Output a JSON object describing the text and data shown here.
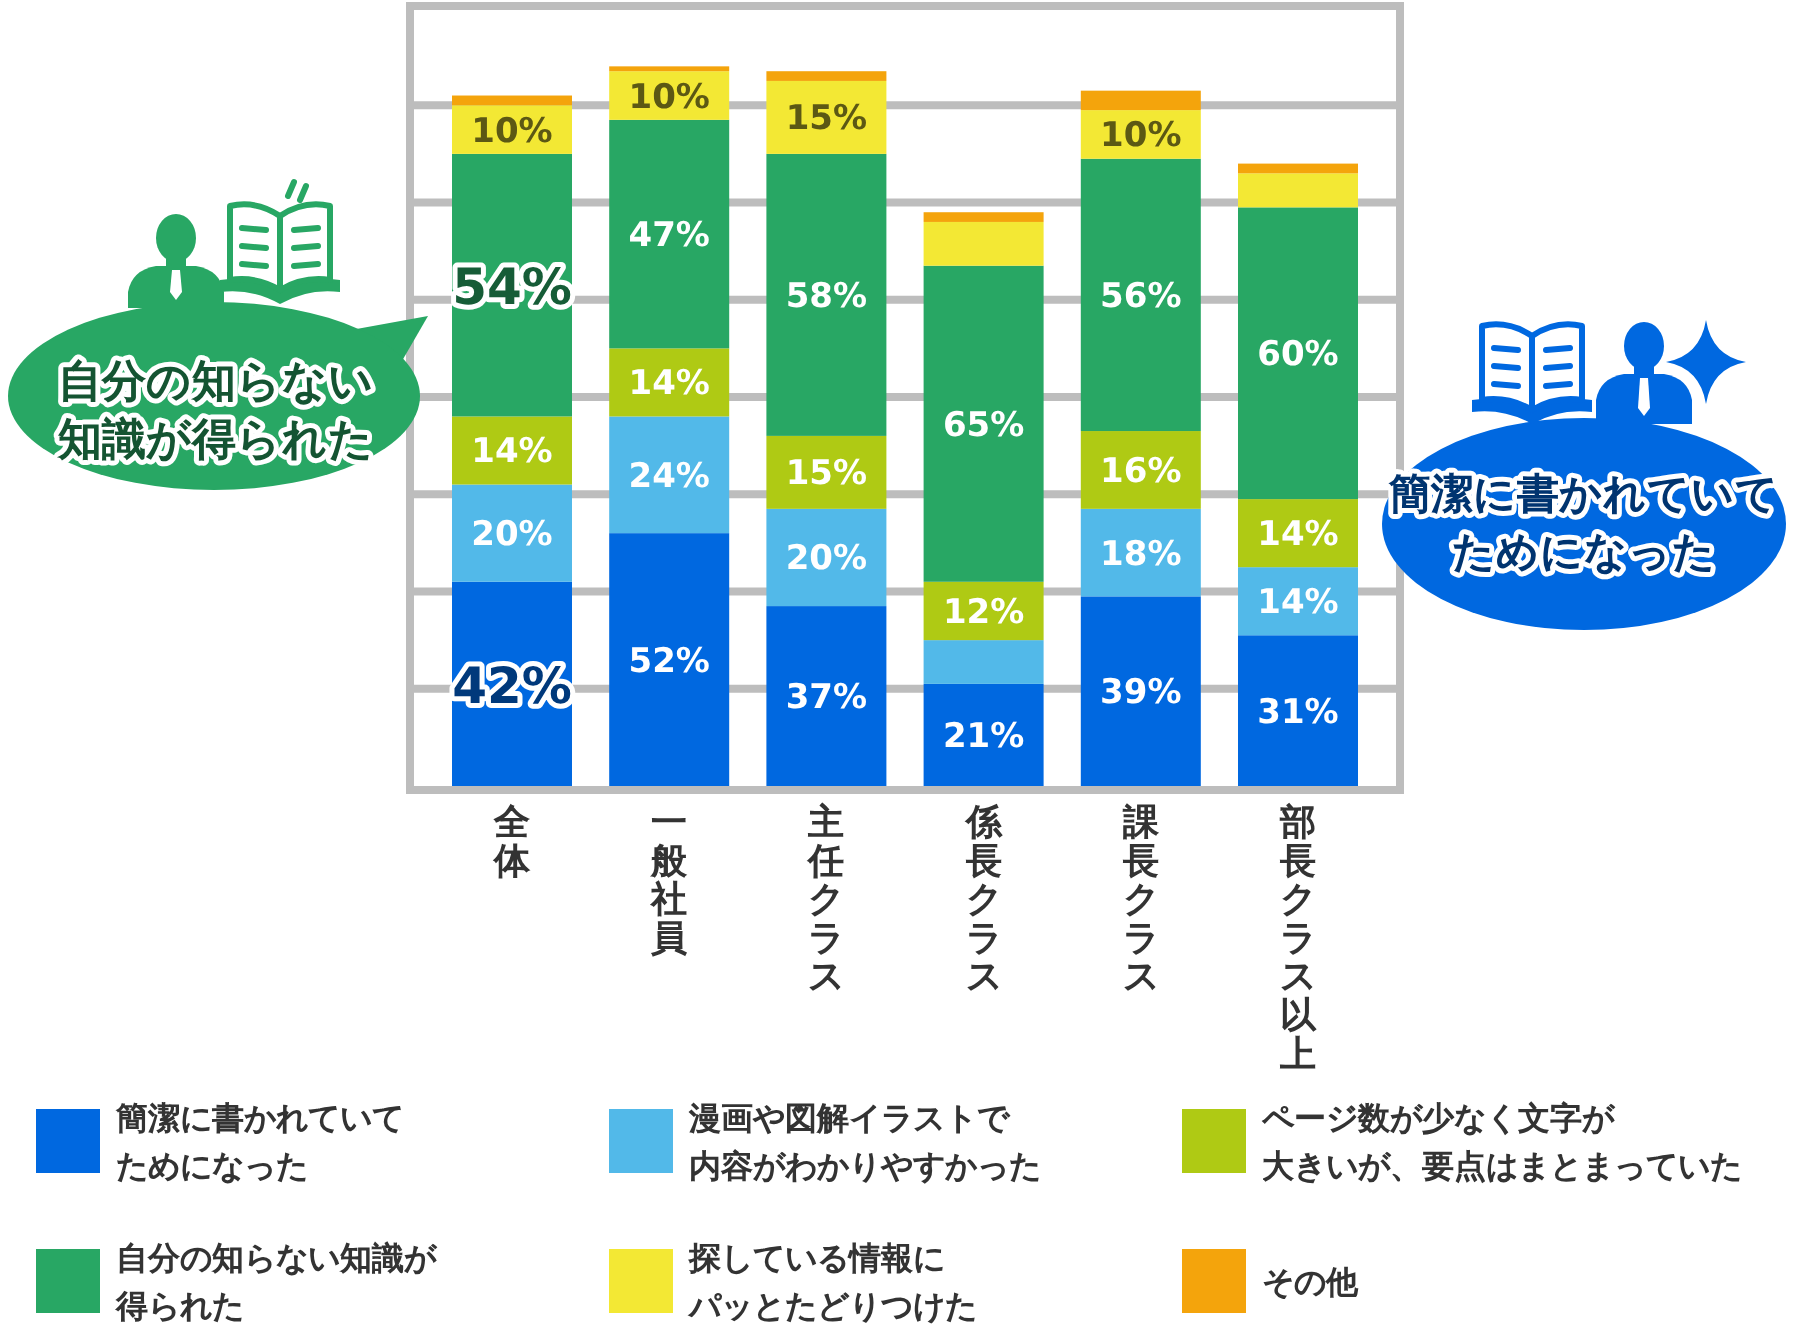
{
  "chart_data": {
    "type": "bar",
    "stacked": true,
    "categories": [
      "全体",
      "一般社員",
      "主任クラス",
      "係長クラス",
      "課長クラス",
      "部長クラス以上"
    ],
    "series": [
      {
        "name": "簡潔に書かれていてためになった",
        "color": "#0068e0",
        "values": [
          42,
          52,
          37,
          21,
          39,
          31
        ],
        "value_labels": [
          "42%",
          "52%",
          "37%",
          "21%",
          "39%",
          "31%"
        ]
      },
      {
        "name": "漫画や図解イラストで内容がわかりやすかった",
        "color": "#52b9e9",
        "values": [
          20,
          24,
          20,
          9,
          18,
          14
        ],
        "value_labels": [
          "20%",
          "24%",
          "20%",
          null,
          "18%",
          "14%"
        ]
      },
      {
        "name": "ページ数が少なく文字が大きいが、要点はまとまっていた",
        "color": "#afca14",
        "values": [
          14,
          14,
          15,
          12,
          16,
          14
        ],
        "value_labels": [
          "14%",
          "14%",
          "15%",
          "12%",
          "16%",
          "14%"
        ]
      },
      {
        "name": "自分の知らない知識が得られた",
        "color": "#28a764",
        "values": [
          54,
          47,
          58,
          65,
          56,
          60
        ],
        "value_labels": [
          "54%",
          "47%",
          "58%",
          "65%",
          "56%",
          "60%"
        ]
      },
      {
        "name": "探している情報にパッとたどりつけた",
        "color": "#f3e834",
        "values": [
          10,
          10,
          15,
          9,
          10,
          7
        ],
        "value_labels": [
          "10%",
          "10%",
          "15%",
          null,
          "10%",
          null
        ]
      },
      {
        "name": "その他",
        "color": "#f4a40c",
        "values": [
          2,
          1,
          2,
          2,
          4,
          2
        ],
        "value_labels": [
          null,
          null,
          null,
          null,
          null,
          null
        ]
      }
    ],
    "ylim": [
      0,
      160
    ],
    "yticks": [
      {
        "value": 20,
        "label": null
      },
      {
        "value": 40,
        "label": null
      },
      {
        "value": 60,
        "label": null
      },
      {
        "value": 80,
        "label": null
      },
      {
        "value": 100,
        "label": null
      },
      {
        "value": 120,
        "label": null
      },
      {
        "value": 140,
        "label": null
      }
    ],
    "grid": "y",
    "tick_labels": "x",
    "legend": "bottom",
    "annotations": [
      "自分の知らない知識が得られた",
      "簡潔に書かれていてためになった"
    ]
  }
}
